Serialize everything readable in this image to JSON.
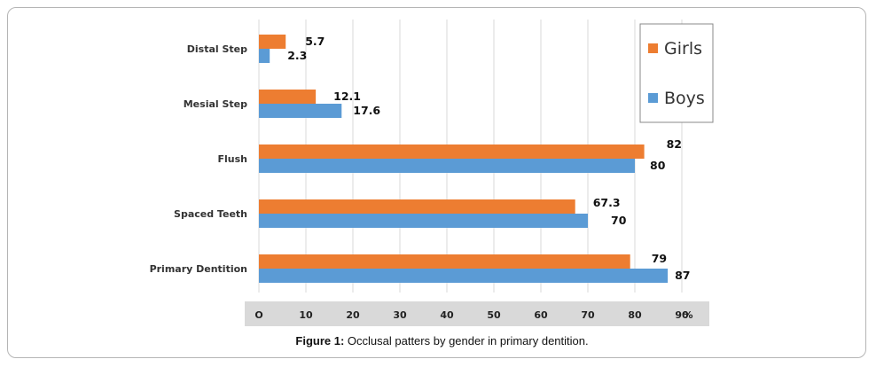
{
  "chart_data": {
    "type": "bar",
    "orientation": "horizontal",
    "categories": [
      "Distal Step",
      "Mesial Step",
      "Flush",
      "Spaced Teeth",
      "Primary Dentition"
    ],
    "series": [
      {
        "name": "Girls",
        "color": "#ED7D31",
        "values": [
          5.7,
          12.1,
          82,
          67.3,
          79
        ],
        "labels": [
          "5.7",
          "12.1",
          "82",
          "67.3",
          "79"
        ]
      },
      {
        "name": "Boys",
        "color": "#5B9BD5",
        "values": [
          2.3,
          17.6,
          80,
          70,
          87
        ],
        "labels": [
          "2.3",
          "17.6",
          "80",
          "70",
          "87"
        ]
      }
    ],
    "x_ticks": [
      {
        "value": 0,
        "label": "O"
      },
      {
        "value": 10,
        "label": "10"
      },
      {
        "value": 20,
        "label": "20"
      },
      {
        "value": 30,
        "label": "30"
      },
      {
        "value": 40,
        "label": "40"
      },
      {
        "value": 50,
        "label": "50"
      },
      {
        "value": 60,
        "label": "60"
      },
      {
        "value": 70,
        "label": "70"
      },
      {
        "value": 80,
        "label": "80"
      },
      {
        "value": 90,
        "label": "90"
      }
    ],
    "x_unit_label": "%",
    "xlim": [
      0,
      95
    ],
    "grid": true,
    "legend": {
      "position": "top-right",
      "entries": [
        "Girls",
        "Boys"
      ]
    }
  },
  "caption": {
    "prefix": "Figure 1:",
    "text": " Occlusal patters by gender in primary dentition."
  },
  "colors": {
    "grid": "#d9d9d9",
    "axis_band": "#d9d9d9"
  }
}
